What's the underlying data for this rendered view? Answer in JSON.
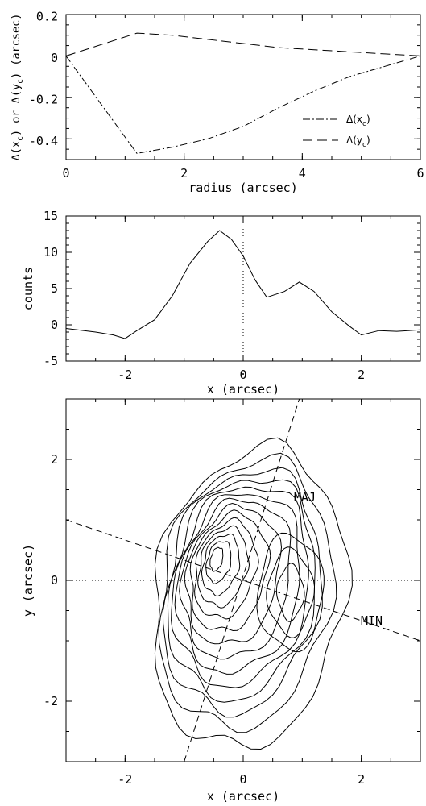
{
  "figure": {
    "panel1": {
      "xlabel": "radius (arcsec)",
      "ylabel_parts": [
        "Δ(x",
        "c",
        ") or Δ(y",
        "c",
        ") (arcsec)"
      ],
      "xticks": [
        0,
        2,
        4,
        6
      ],
      "yticks": [
        -0.4,
        -0.2,
        0,
        0.2
      ],
      "legend": [
        {
          "main": "Δ(x",
          "sub": "c",
          "tail": ")"
        },
        {
          "main": "Δ(y",
          "sub": "c",
          "tail": ")"
        }
      ]
    },
    "panel2": {
      "xlabel": "x (arcsec)",
      "ylabel": "counts",
      "xticks": [
        -2,
        0,
        2
      ],
      "yticks": [
        -5,
        0,
        5,
        10,
        15
      ]
    },
    "panel3": {
      "xlabel": "x (arcsec)",
      "ylabel": "y (arcsec)",
      "xticks": [
        -2,
        0,
        2
      ],
      "yticks": [
        -2,
        0,
        2
      ],
      "labels": {
        "major": "MAJ",
        "minor": "MIN"
      }
    }
  },
  "chart_data": [
    {
      "type": "line",
      "xlabel": "radius (arcsec)",
      "ylabel": "Δ(xc) or Δ(yc) (arcsec)",
      "xlim": [
        0,
        6
      ],
      "ylim": [
        -0.5,
        0.2
      ],
      "legend_position": "bottom-right",
      "series": [
        {
          "name": "Δ(xc)",
          "style": "dash-dot",
          "x": [
            0,
            1.2,
            1.8,
            2.4,
            3.0,
            3.6,
            4.2,
            4.8,
            5.4,
            6.0
          ],
          "y": [
            0,
            -0.47,
            -0.44,
            -0.4,
            -0.34,
            -0.25,
            -0.17,
            -0.1,
            -0.05,
            0
          ]
        },
        {
          "name": "Δ(yc)",
          "style": "dash",
          "x": [
            0,
            1.2,
            1.8,
            2.4,
            3.0,
            3.6,
            4.2,
            4.8,
            5.4,
            6.0
          ],
          "y": [
            0,
            0.11,
            0.1,
            0.08,
            0.06,
            0.04,
            0.03,
            0.02,
            0.01,
            0
          ]
        }
      ]
    },
    {
      "type": "line",
      "xlabel": "x (arcsec)",
      "ylabel": "counts",
      "xlim": [
        -3,
        3
      ],
      "ylim": [
        -5,
        15
      ],
      "vline_x": 0,
      "series": [
        {
          "x": [
            -3,
            -2.5,
            -2.2,
            -2.0,
            -1.8,
            -1.5,
            -1.2,
            -0.9,
            -0.6,
            -0.4,
            -0.2,
            0,
            0.2,
            0.4,
            0.7,
            0.95,
            1.2,
            1.5,
            1.8,
            2.0,
            2.3,
            2.6,
            3.0
          ],
          "y": [
            -0.5,
            -1.0,
            -1.4,
            -1.9,
            -0.8,
            0.7,
            4.0,
            8.5,
            11.5,
            13.0,
            11.8,
            9.5,
            6.2,
            3.8,
            4.6,
            5.9,
            4.6,
            1.8,
            -0.2,
            -1.4,
            -0.8,
            -0.9,
            -0.7
          ]
        }
      ]
    },
    {
      "type": "contour",
      "xlabel": "x (arcsec)",
      "ylabel": "y (arcsec)",
      "xlim": [
        -3,
        3
      ],
      "ylim": [
        -3,
        3
      ],
      "n_levels": 14,
      "peak": [
        -0.45,
        0.35
      ],
      "secondary_peak": [
        0.8,
        -0.2
      ],
      "axes": {
        "major": {
          "label": "MAJ",
          "p1": [
            -1.0,
            -3.0
          ],
          "p2": [
            0.95,
            3.0
          ]
        },
        "minor": {
          "label": "MIN",
          "p1": [
            -3.0,
            1.0
          ],
          "p2": [
            3.0,
            -1.0
          ]
        },
        "reference_y": 0
      }
    }
  ]
}
